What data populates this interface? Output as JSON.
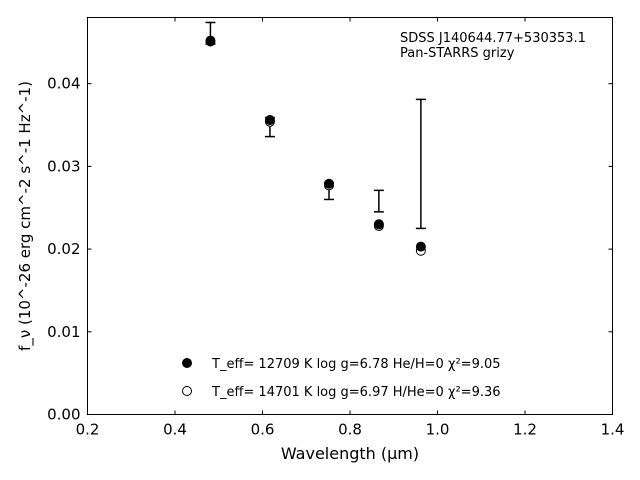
{
  "chart_data": {
    "type": "scatter",
    "annotation": {
      "line1": "SDSS J140644.77+530353.1",
      "line2": "Pan-STARRS grizy"
    },
    "xlabel": "Wavelength (μm)",
    "ylabel": "f_ν (10^-26 erg cm^-2 s^-1 Hz^-1)",
    "xlim": [
      0.2,
      1.4
    ],
    "ylim": [
      0.0,
      0.048
    ],
    "xticks": [
      "0.2",
      "0.4",
      "0.6",
      "0.8",
      "1.0",
      "1.2",
      "1.4"
    ],
    "yticks": [
      "0.00",
      "0.01",
      "0.02",
      "0.03",
      "0.04"
    ],
    "grid": false,
    "legend_position": "lower-center",
    "observed": {
      "x": [
        0.481,
        0.617,
        0.752,
        0.866,
        0.962
      ],
      "y": [
        0.0461,
        0.0355,
        0.0276,
        0.0258,
        0.0303
      ],
      "yerr_low": [
        0.0013,
        0.0019,
        0.0016,
        0.0013,
        0.0078
      ],
      "yerr_high": [
        0.0013,
        0.0004,
        0.0004,
        0.0013,
        0.0078
      ]
    },
    "series": [
      {
        "name": "T_eff= 12709 K  log g=6.78  He/H=0  χ²=9.05",
        "marker": "filled-circle",
        "x": [
          0.481,
          0.617,
          0.752,
          0.866,
          0.962
        ],
        "y": [
          0.0452,
          0.0356,
          0.0279,
          0.023,
          0.0203
        ]
      },
      {
        "name": "T_eff= 14701 K  log g=6.97  H/He=0  χ²=9.36",
        "marker": "open-circle",
        "x": [
          0.481,
          0.617,
          0.752,
          0.866,
          0.962
        ],
        "y": [
          0.0451,
          0.0354,
          0.0277,
          0.0228,
          0.0198
        ]
      }
    ]
  }
}
